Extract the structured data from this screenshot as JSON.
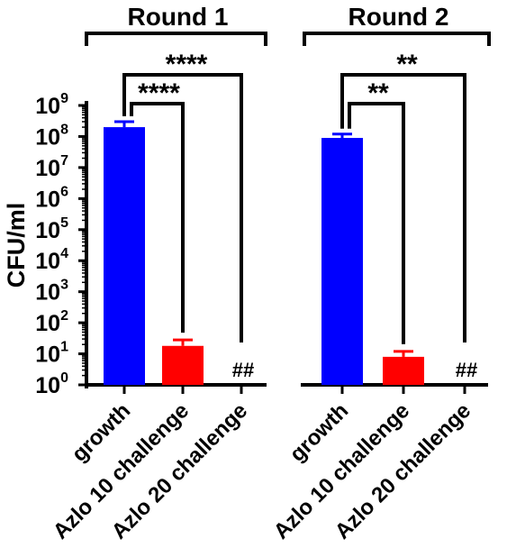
{
  "chart_data": {
    "type": "bar",
    "title": "",
    "xlabel": "",
    "ylabel": "CFU/ml",
    "yscale": "log",
    "ylim": [
      1,
      1000000000
    ],
    "yticks": [
      {
        "value": 1,
        "base": "10",
        "exp": "0"
      },
      {
        "value": 10,
        "base": "10",
        "exp": "1"
      },
      {
        "value": 100,
        "base": "10",
        "exp": "2"
      },
      {
        "value": 1000,
        "base": "10",
        "exp": "3"
      },
      {
        "value": 10000,
        "base": "10",
        "exp": "4"
      },
      {
        "value": 100000,
        "base": "10",
        "exp": "5"
      },
      {
        "value": 1000000,
        "base": "10",
        "exp": "6"
      },
      {
        "value": 10000000,
        "base": "10",
        "exp": "7"
      },
      {
        "value": 100000000,
        "base": "10",
        "exp": "8"
      },
      {
        "value": 1000000000,
        "base": "10",
        "exp": "9"
      }
    ],
    "groups": [
      {
        "label": "Round 1",
        "bars": [
          {
            "category": "growth",
            "value": 200000000,
            "error": 300000000,
            "color": "#0000FF",
            "note": ""
          },
          {
            "category": "Azlo 10 challenge",
            "value": 18,
            "error": 28,
            "color": "#FF0000",
            "note": ""
          },
          {
            "category": "Azlo 20 challenge",
            "value": 0,
            "error": 0,
            "color": "#FF0000",
            "note": "##"
          }
        ],
        "brackets": [
          {
            "from": 0,
            "to": 1,
            "label": "****"
          },
          {
            "from": 0,
            "to": 2,
            "label": "****"
          }
        ]
      },
      {
        "label": "Round 2",
        "bars": [
          {
            "category": "growth",
            "value": 90000000,
            "error": 120000000,
            "color": "#0000FF",
            "note": ""
          },
          {
            "category": "Azlo 10 challenge",
            "value": 8,
            "error": 12,
            "color": "#FF0000",
            "note": ""
          },
          {
            "category": "Azlo 20 challenge",
            "value": 0,
            "error": 0,
            "color": "#FF0000",
            "note": "##"
          }
        ],
        "brackets": [
          {
            "from": 0,
            "to": 1,
            "label": "**"
          },
          {
            "from": 0,
            "to": 2,
            "label": "**"
          }
        ]
      }
    ],
    "grid": false,
    "legend": "none"
  }
}
